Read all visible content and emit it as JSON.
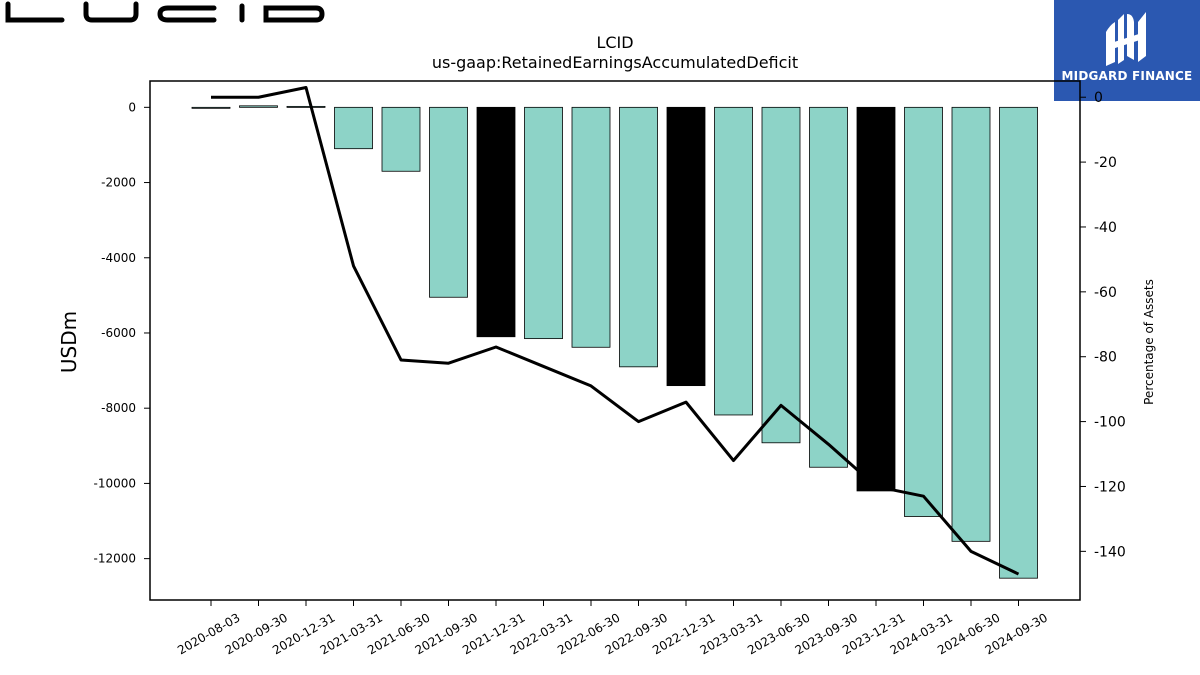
{
  "brand": {
    "logo_text": "LUCID",
    "badge_text": "MIDGARD FINANCE",
    "badge_color": "#2b58b1"
  },
  "chart_data": {
    "type": "bar",
    "title": "LCID",
    "subtitle": "us-gaap:RetainedEarningsAccumulatedDeficit",
    "ylabel": "USDm",
    "y2label": "Percentage of Assets",
    "ylim": [
      -13100,
      700
    ],
    "y2lim": [
      -155,
      5
    ],
    "yticks": [
      0,
      -2000,
      -4000,
      -6000,
      -8000,
      -10000,
      -12000
    ],
    "y2ticks": [
      0,
      -20,
      -40,
      -60,
      -80,
      -100,
      -120,
      -140
    ],
    "categories": [
      "2020-08-03",
      "2020-09-30",
      "2020-12-31",
      "2021-03-31",
      "2021-06-30",
      "2021-09-30",
      "2021-12-31",
      "2022-03-31",
      "2022-06-30",
      "2022-09-30",
      "2022-12-31",
      "2023-03-31",
      "2023-06-30",
      "2023-09-30",
      "2023-12-31",
      "2024-03-31",
      "2024-06-30",
      "2024-09-30"
    ],
    "series": [
      {
        "kind": "bar",
        "axis": "left",
        "values": [
          -12,
          40,
          25,
          -1100,
          -1700,
          -5050,
          -6100,
          -6150,
          -6380,
          -6900,
          -7400,
          -8180,
          -8920,
          -9570,
          -10200,
          -10880,
          -11540,
          -12520
        ],
        "fills": [
          "#8dd3c7",
          "#8dd3c7",
          "#8dd3c7",
          "#8dd3c7",
          "#8dd3c7",
          "#8dd3c7",
          "#000000",
          "#8dd3c7",
          "#8dd3c7",
          "#8dd3c7",
          "#000000",
          "#8dd3c7",
          "#8dd3c7",
          "#8dd3c7",
          "#000000",
          "#8dd3c7",
          "#8dd3c7",
          "#8dd3c7"
        ]
      },
      {
        "kind": "line",
        "axis": "right",
        "color": "#000000",
        "values": [
          0,
          0,
          3,
          -52,
          -81,
          -82,
          -77,
          -83,
          -89,
          -100,
          -94,
          -112,
          -95,
          -107,
          -120,
          -123,
          -140,
          -147
        ]
      }
    ]
  }
}
